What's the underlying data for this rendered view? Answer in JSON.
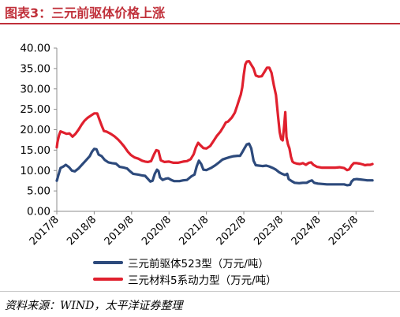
{
  "header": {
    "title": "图表3：三元前驱体价格上涨"
  },
  "source": "资料来源：WIND，太平洋证券整理",
  "colors": {
    "accent": "#c0303a",
    "series1": "#2d4a7c",
    "series2": "#e0202e"
  },
  "chart_data": {
    "type": "line",
    "title": "",
    "xlabel": "",
    "ylabel": "",
    "ylim": [
      0,
      40
    ],
    "yticks": [
      "0.00",
      "5.00",
      "10.00",
      "15.00",
      "20.00",
      "25.00",
      "30.00",
      "35.00",
      "40.00"
    ],
    "xlim": [
      2017.62,
      2026.1
    ],
    "xticks": [
      {
        "x": 2017.62,
        "label": "2017/8"
      },
      {
        "x": 2018.62,
        "label": "2018/8"
      },
      {
        "x": 2019.62,
        "label": "2019/8"
      },
      {
        "x": 2020.62,
        "label": "2020/8"
      },
      {
        "x": 2021.62,
        "label": "2021/8"
      },
      {
        "x": 2022.62,
        "label": "2022/8"
      },
      {
        "x": 2023.62,
        "label": "2023/8"
      },
      {
        "x": 2024.62,
        "label": "2024/8"
      },
      {
        "x": 2025.62,
        "label": "2025/8"
      }
    ],
    "legend_position": "bottom",
    "grid": false,
    "series": [
      {
        "name": "三元前驱体523型（万元/吨）",
        "color": "#2d4a7c",
        "points": [
          [
            2017.62,
            7.5
          ],
          [
            2017.66,
            8.8
          ],
          [
            2017.72,
            10.6
          ],
          [
            2017.8,
            11.0
          ],
          [
            2017.86,
            11.4
          ],
          [
            2017.95,
            10.8
          ],
          [
            2018.02,
            10.0
          ],
          [
            2018.1,
            9.8
          ],
          [
            2018.2,
            10.5
          ],
          [
            2018.3,
            11.5
          ],
          [
            2018.4,
            12.5
          ],
          [
            2018.5,
            13.5
          ],
          [
            2018.56,
            14.6
          ],
          [
            2018.62,
            15.3
          ],
          [
            2018.68,
            15.2
          ],
          [
            2018.74,
            13.9
          ],
          [
            2018.82,
            13.5
          ],
          [
            2018.9,
            12.6
          ],
          [
            2019.0,
            12.0
          ],
          [
            2019.1,
            11.8
          ],
          [
            2019.2,
            11.7
          ],
          [
            2019.3,
            10.9
          ],
          [
            2019.42,
            10.7
          ],
          [
            2019.5,
            10.5
          ],
          [
            2019.58,
            9.8
          ],
          [
            2019.66,
            9.2
          ],
          [
            2019.8,
            9.0
          ],
          [
            2019.9,
            8.8
          ],
          [
            2019.98,
            8.7
          ],
          [
            2020.05,
            8.0
          ],
          [
            2020.12,
            7.3
          ],
          [
            2020.18,
            7.5
          ],
          [
            2020.24,
            9.2
          ],
          [
            2020.3,
            10.2
          ],
          [
            2020.34,
            9.9
          ],
          [
            2020.38,
            8.3
          ],
          [
            2020.45,
            7.7
          ],
          [
            2020.53,
            8.0
          ],
          [
            2020.6,
            8.1
          ],
          [
            2020.68,
            7.7
          ],
          [
            2020.76,
            7.4
          ],
          [
            2020.9,
            7.4
          ],
          [
            2021.0,
            7.6
          ],
          [
            2021.1,
            7.7
          ],
          [
            2021.22,
            8.6
          ],
          [
            2021.3,
            9.0
          ],
          [
            2021.36,
            11.0
          ],
          [
            2021.42,
            12.4
          ],
          [
            2021.48,
            11.6
          ],
          [
            2021.54,
            10.2
          ],
          [
            2021.62,
            10.1
          ],
          [
            2021.74,
            10.6
          ],
          [
            2021.86,
            11.3
          ],
          [
            2021.96,
            12.0
          ],
          [
            2022.05,
            12.7
          ],
          [
            2022.15,
            13.0
          ],
          [
            2022.25,
            13.3
          ],
          [
            2022.35,
            13.5
          ],
          [
            2022.45,
            13.6
          ],
          [
            2022.52,
            13.6
          ],
          [
            2022.58,
            14.5
          ],
          [
            2022.64,
            15.5
          ],
          [
            2022.7,
            16.4
          ],
          [
            2022.76,
            16.6
          ],
          [
            2022.82,
            15.4
          ],
          [
            2022.88,
            12.4
          ],
          [
            2022.94,
            11.3
          ],
          [
            2023.02,
            11.2
          ],
          [
            2023.12,
            11.1
          ],
          [
            2023.22,
            11.2
          ],
          [
            2023.3,
            11.0
          ],
          [
            2023.4,
            10.6
          ],
          [
            2023.48,
            10.2
          ],
          [
            2023.56,
            9.6
          ],
          [
            2023.64,
            9.2
          ],
          [
            2023.72,
            8.9
          ],
          [
            2023.78,
            9.2
          ],
          [
            2023.82,
            7.9
          ],
          [
            2023.9,
            7.4
          ],
          [
            2023.98,
            7.0
          ],
          [
            2024.1,
            6.9
          ],
          [
            2024.2,
            7.0
          ],
          [
            2024.3,
            7.0
          ],
          [
            2024.38,
            7.4
          ],
          [
            2024.44,
            7.6
          ],
          [
            2024.5,
            7.0
          ],
          [
            2024.6,
            6.8
          ],
          [
            2024.72,
            6.7
          ],
          [
            2024.84,
            6.6
          ],
          [
            2024.96,
            6.6
          ],
          [
            2025.08,
            6.6
          ],
          [
            2025.2,
            6.6
          ],
          [
            2025.3,
            6.6
          ],
          [
            2025.38,
            6.4
          ],
          [
            2025.46,
            6.5
          ],
          [
            2025.5,
            7.3
          ],
          [
            2025.56,
            7.8
          ],
          [
            2025.64,
            7.9
          ],
          [
            2025.74,
            7.8
          ],
          [
            2025.84,
            7.7
          ],
          [
            2025.92,
            7.6
          ],
          [
            2026.0,
            7.6
          ],
          [
            2026.06,
            7.6
          ]
        ]
      },
      {
        "name": "三元材料5系动力型（万元/吨）",
        "color": "#e0202e",
        "points": [
          [
            2017.62,
            15.7
          ],
          [
            2017.64,
            17.0
          ],
          [
            2017.68,
            18.6
          ],
          [
            2017.72,
            19.6
          ],
          [
            2017.8,
            19.3
          ],
          [
            2017.88,
            19.0
          ],
          [
            2017.96,
            19.1
          ],
          [
            2018.04,
            18.3
          ],
          [
            2018.12,
            19.0
          ],
          [
            2018.2,
            20.0
          ],
          [
            2018.28,
            21.2
          ],
          [
            2018.36,
            22.2
          ],
          [
            2018.44,
            22.9
          ],
          [
            2018.52,
            23.4
          ],
          [
            2018.62,
            24.0
          ],
          [
            2018.7,
            24.0
          ],
          [
            2018.76,
            22.5
          ],
          [
            2018.82,
            21.0
          ],
          [
            2018.88,
            19.7
          ],
          [
            2018.96,
            19.5
          ],
          [
            2019.06,
            19.0
          ],
          [
            2019.16,
            18.4
          ],
          [
            2019.26,
            17.6
          ],
          [
            2019.34,
            16.8
          ],
          [
            2019.42,
            15.9
          ],
          [
            2019.52,
            14.6
          ],
          [
            2019.6,
            13.8
          ],
          [
            2019.7,
            13.2
          ],
          [
            2019.8,
            12.9
          ],
          [
            2019.9,
            12.4
          ],
          [
            2019.98,
            12.2
          ],
          [
            2020.06,
            12.1
          ],
          [
            2020.14,
            12.3
          ],
          [
            2020.22,
            14.0
          ],
          [
            2020.28,
            15.0
          ],
          [
            2020.34,
            14.8
          ],
          [
            2020.4,
            12.5
          ],
          [
            2020.5,
            12.1
          ],
          [
            2020.62,
            12.2
          ],
          [
            2020.74,
            11.9
          ],
          [
            2020.86,
            11.9
          ],
          [
            2021.0,
            12.2
          ],
          [
            2021.1,
            12.3
          ],
          [
            2021.2,
            12.8
          ],
          [
            2021.28,
            14.0
          ],
          [
            2021.34,
            15.7
          ],
          [
            2021.4,
            16.8
          ],
          [
            2021.46,
            16.2
          ],
          [
            2021.54,
            15.5
          ],
          [
            2021.62,
            15.4
          ],
          [
            2021.72,
            16.0
          ],
          [
            2021.8,
            17.1
          ],
          [
            2021.9,
            18.5
          ],
          [
            2022.0,
            19.6
          ],
          [
            2022.08,
            20.8
          ],
          [
            2022.14,
            21.8
          ],
          [
            2022.2,
            22.0
          ],
          [
            2022.3,
            23.0
          ],
          [
            2022.38,
            24.2
          ],
          [
            2022.44,
            25.8
          ],
          [
            2022.5,
            27.5
          ],
          [
            2022.54,
            28.6
          ],
          [
            2022.58,
            30.4
          ],
          [
            2022.62,
            33.5
          ],
          [
            2022.66,
            36.0
          ],
          [
            2022.7,
            36.7
          ],
          [
            2022.76,
            36.8
          ],
          [
            2022.82,
            35.9
          ],
          [
            2022.88,
            35.0
          ],
          [
            2022.94,
            33.3
          ],
          [
            2023.02,
            33.0
          ],
          [
            2023.1,
            33.1
          ],
          [
            2023.18,
            34.3
          ],
          [
            2023.24,
            35.2
          ],
          [
            2023.3,
            35.2
          ],
          [
            2023.36,
            34.0
          ],
          [
            2023.42,
            31.0
          ],
          [
            2023.48,
            28.5
          ],
          [
            2023.54,
            23.0
          ],
          [
            2023.58,
            19.4
          ],
          [
            2023.62,
            17.7
          ],
          [
            2023.66,
            17.4
          ],
          [
            2023.7,
            21.0
          ],
          [
            2023.73,
            24.3
          ],
          [
            2023.76,
            18.2
          ],
          [
            2023.8,
            16.4
          ],
          [
            2023.84,
            15.4
          ],
          [
            2023.88,
            13.4
          ],
          [
            2023.92,
            12.2
          ],
          [
            2023.96,
            11.9
          ],
          [
            2024.04,
            11.7
          ],
          [
            2024.12,
            11.6
          ],
          [
            2024.2,
            11.8
          ],
          [
            2024.28,
            11.4
          ],
          [
            2024.36,
            11.9
          ],
          [
            2024.42,
            12.0
          ],
          [
            2024.48,
            11.4
          ],
          [
            2024.58,
            10.9
          ],
          [
            2024.7,
            10.7
          ],
          [
            2024.82,
            10.7
          ],
          [
            2024.94,
            10.7
          ],
          [
            2025.06,
            10.7
          ],
          [
            2025.18,
            10.8
          ],
          [
            2025.3,
            10.6
          ],
          [
            2025.38,
            10.1
          ],
          [
            2025.44,
            10.3
          ],
          [
            2025.5,
            11.2
          ],
          [
            2025.56,
            11.8
          ],
          [
            2025.64,
            11.8
          ],
          [
            2025.72,
            11.7
          ],
          [
            2025.8,
            11.5
          ],
          [
            2025.86,
            11.3
          ],
          [
            2025.92,
            11.4
          ],
          [
            2026.0,
            11.4
          ],
          [
            2026.06,
            11.6
          ]
        ]
      }
    ]
  }
}
